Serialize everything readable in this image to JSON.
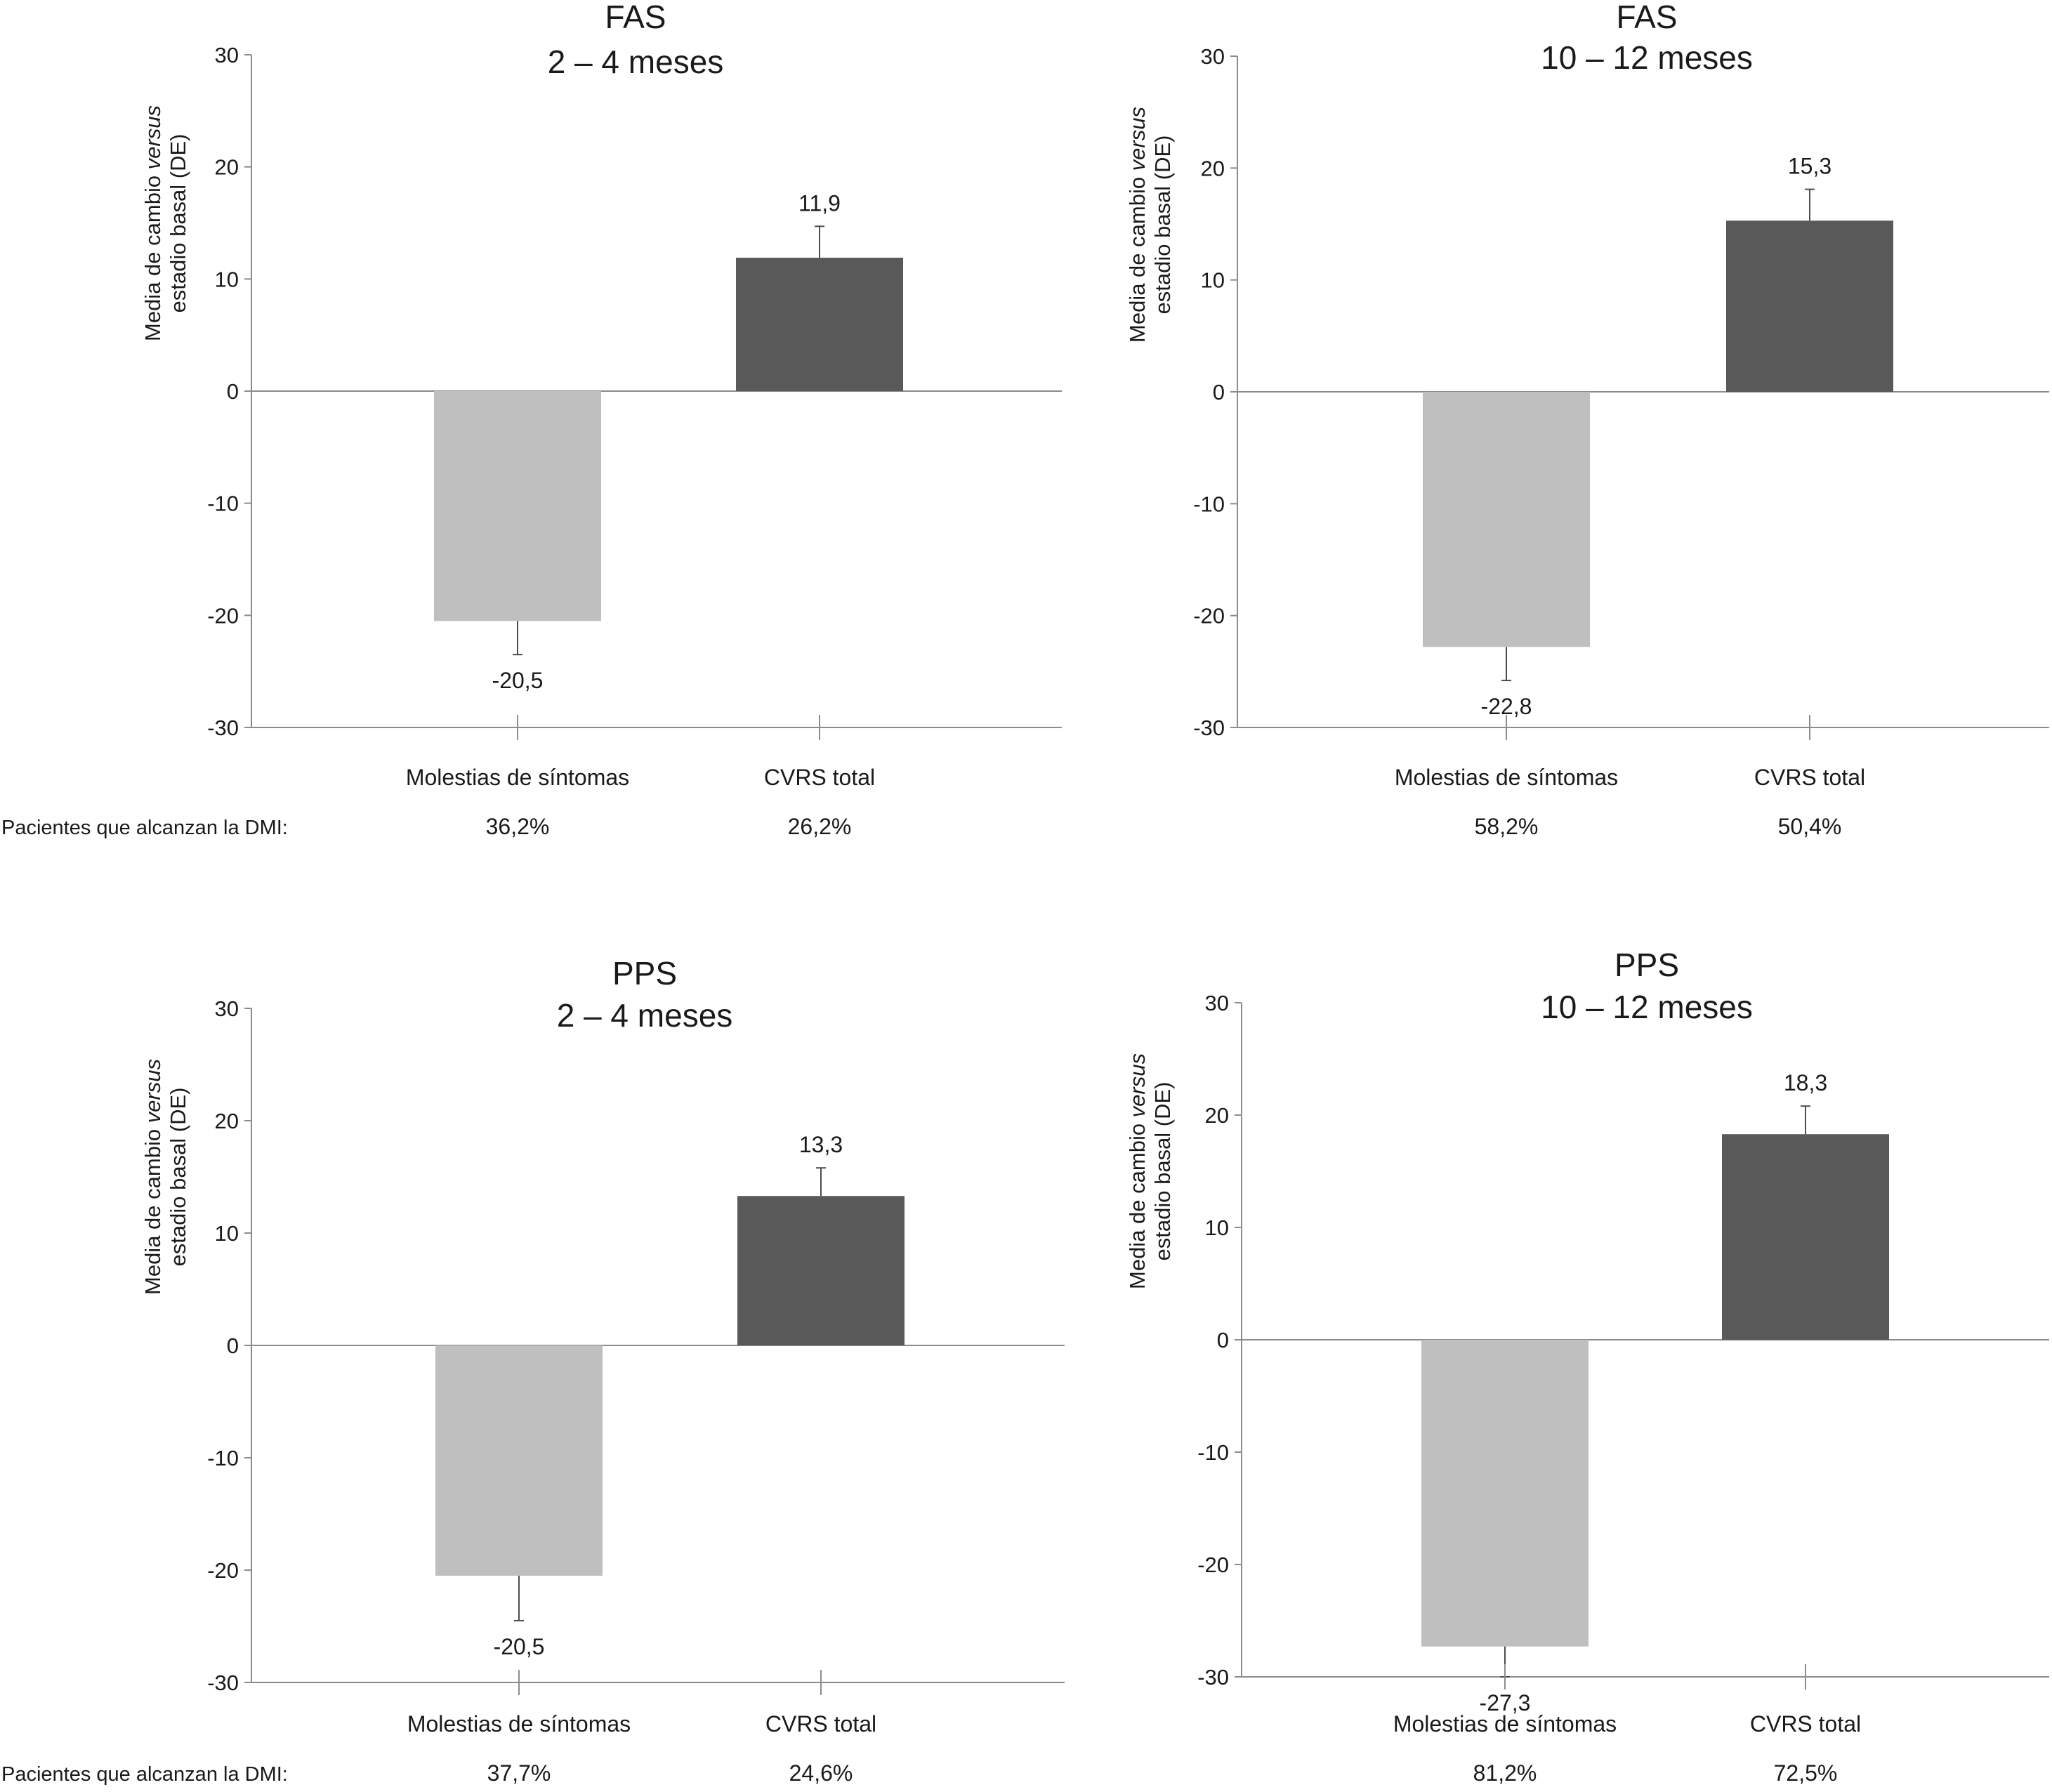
{
  "colors": {
    "symptom_bar": "#bfbfbf",
    "total_bar": "#595959",
    "axis": "#8c8c8c",
    "error_bar": "#4d4d4d",
    "text": "#1a1a1a"
  },
  "dmi_caption": "Pacientes que alcanzan la DMI:",
  "chart_data": [
    {
      "type": "bar",
      "title": [
        "FAS",
        "2 – 4 meses"
      ],
      "ylabel": [
        "Media de cambio ",
        "versus",
        "estadio basal (DE)"
      ],
      "ylim": [
        -30,
        30
      ],
      "yticks": [
        "30",
        "20",
        "10",
        "0",
        "-10",
        "-20",
        "-30"
      ],
      "categories": [
        "Molestias de síntomas",
        "CVRS total"
      ],
      "values": [
        -20.5,
        11.9
      ],
      "value_labels": [
        "-20,5",
        "11,9"
      ],
      "error_bars": [
        3,
        2.8
      ],
      "dmi_percent": [
        "36,2%",
        "26,2%"
      ]
    },
    {
      "type": "bar",
      "title": [
        "FAS",
        "10 – 12 meses"
      ],
      "ylabel": [
        "Media de cambio ",
        "versus",
        "estadio basal (DE)"
      ],
      "ylim": [
        -30,
        30
      ],
      "yticks": [
        "30",
        "20",
        "10",
        "0",
        "-10",
        "-20",
        "-30"
      ],
      "categories": [
        "Molestias de síntomas",
        "CVRS total"
      ],
      "values": [
        -22.8,
        15.3
      ],
      "value_labels": [
        "-22,8",
        "15,3"
      ],
      "error_bars": [
        3,
        2.8
      ],
      "dmi_percent": [
        "58,2%",
        "50,4%"
      ]
    },
    {
      "type": "bar",
      "title": [
        "PPS",
        "2 – 4 meses"
      ],
      "ylabel": [
        "Media de cambio ",
        "versus",
        "estadio basal (DE)"
      ],
      "ylim": [
        -30,
        30
      ],
      "yticks": [
        "30",
        "20",
        "10",
        "0",
        "-10",
        "-20",
        "-30"
      ],
      "categories": [
        "Molestias de síntomas",
        "CVRS total"
      ],
      "values": [
        -20.5,
        13.3
      ],
      "value_labels": [
        "-20,5",
        "13,3"
      ],
      "error_bars": [
        4,
        2.5
      ],
      "dmi_percent": [
        "37,7%",
        "24,6%"
      ]
    },
    {
      "type": "bar",
      "title": [
        "PPS",
        "10 – 12 meses"
      ],
      "ylabel": [
        "Media de cambio ",
        "versus",
        "estadio basal (DE)"
      ],
      "ylim": [
        -30,
        30
      ],
      "yticks": [
        "30",
        "20",
        "10",
        "0",
        "-10",
        "-20",
        "-30"
      ],
      "categories": [
        "Molestias de síntomas",
        "CVRS total"
      ],
      "values": [
        -27.3,
        18.3
      ],
      "value_labels": [
        "-27,3",
        "18,3"
      ],
      "error_bars": [
        2.7,
        2.5
      ],
      "dmi_percent": [
        "81,2%",
        "72,5%"
      ]
    }
  ]
}
